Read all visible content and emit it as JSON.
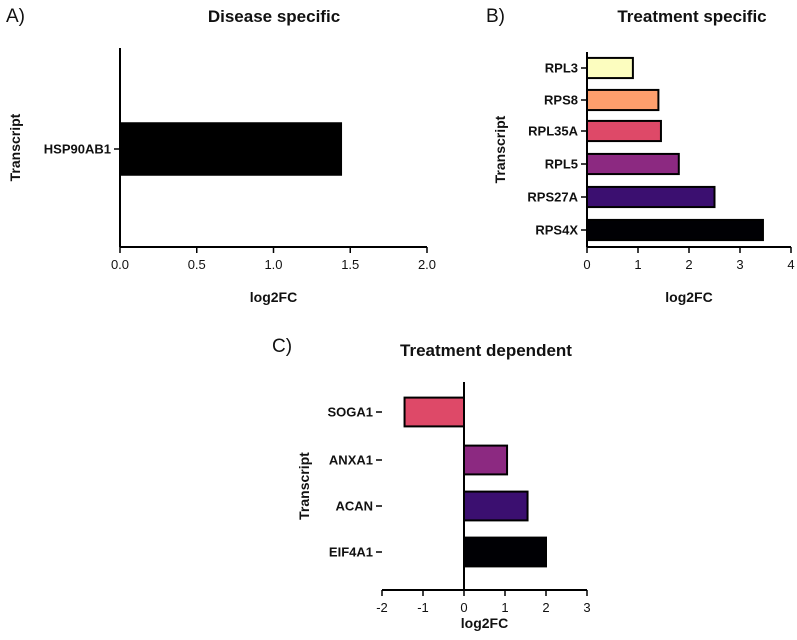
{
  "chart_data": [
    {
      "panel": "A)",
      "type": "bar",
      "orientation": "horizontal",
      "title": "Disease specific",
      "xlabel": "log2FC",
      "ylabel": "Transcript",
      "categories": [
        "HSP90AB1"
      ],
      "values": [
        1.44
      ],
      "colors": [
        "#000000"
      ],
      "xlim": [
        0,
        2
      ],
      "xticks": [
        "0.0",
        "0.5",
        "1.0",
        "1.5",
        "2.0"
      ],
      "grid": false
    },
    {
      "panel": "B)",
      "type": "bar",
      "orientation": "horizontal",
      "title": "Treatment specific",
      "xlabel": "log2FC",
      "ylabel": "Transcript",
      "categories": [
        "RPL3",
        "RPS8",
        "RPL35A",
        "RPL5",
        "RPS27A",
        "RPS4X"
      ],
      "values": [
        0.9,
        1.4,
        1.45,
        1.8,
        2.5,
        3.45
      ],
      "colors": [
        "#fcfdbf",
        "#fe9f6d",
        "#de4968",
        "#8c2981",
        "#3b0f70",
        "#000004"
      ],
      "xlim": [
        0,
        4
      ],
      "xticks": [
        "0",
        "1",
        "2",
        "3",
        "4"
      ],
      "grid": false
    },
    {
      "panel": "C)",
      "type": "bar",
      "orientation": "horizontal",
      "title": "Treatment dependent",
      "xlabel": "log2FC",
      "ylabel": "Transcript",
      "categories": [
        "SOGA1",
        "ANXA1",
        "ACAN",
        "EIF4A1"
      ],
      "values": [
        -1.45,
        1.05,
        1.55,
        2.0
      ],
      "colors": [
        "#de4968",
        "#8c2981",
        "#3b0f70",
        "#000004"
      ],
      "xlim": [
        -2,
        3
      ],
      "xticks": [
        "-2",
        "-1",
        "0",
        "1",
        "2",
        "3"
      ],
      "grid": false
    }
  ]
}
